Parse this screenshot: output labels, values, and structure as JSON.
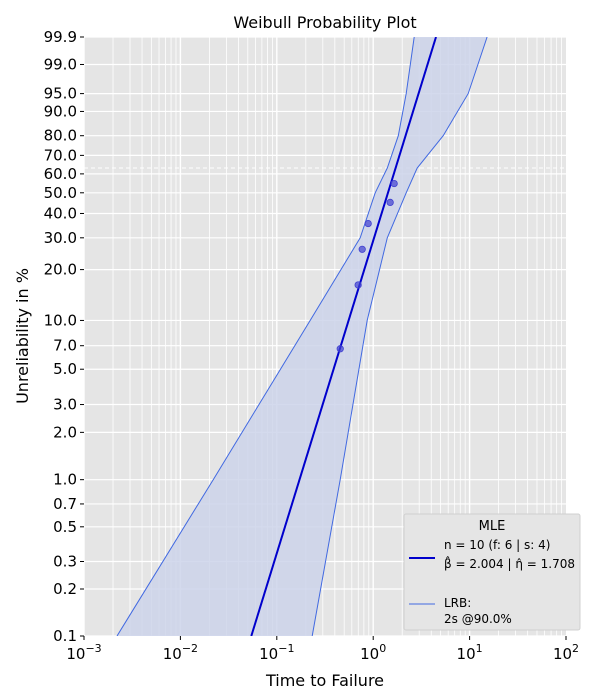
{
  "chart_data": {
    "type": "scatter",
    "title": "Weibull Probability Plot",
    "xlabel": "Time to Failure",
    "ylabel": "Unreliability in %",
    "xscale": "log",
    "yscale": "weibull",
    "xlim": [
      0.001,
      100
    ],
    "ylim": [
      0.1,
      99.9
    ],
    "grid": true,
    "x_ticks": [
      {
        "base": "10",
        "exp": "−3",
        "value": 0.001
      },
      {
        "base": "10",
        "exp": "−2",
        "value": 0.01
      },
      {
        "base": "10",
        "exp": "−1",
        "value": 0.1
      },
      {
        "base": "10",
        "exp": "0",
        "value": 1
      },
      {
        "base": "10",
        "exp": "1",
        "value": 10
      },
      {
        "base": "10",
        "exp": "2",
        "value": 100
      }
    ],
    "y_ticks": [
      "0.1",
      "0.2",
      "0.3",
      "0.5",
      "0.7",
      "1.0",
      "2.0",
      "3.0",
      "5.0",
      "7.0",
      "10.0",
      "20.0",
      "30.0",
      "40.0",
      "50.0",
      "60.0",
      "70.0",
      "80.0",
      "90.0",
      "95.0",
      "99.0",
      "99.9"
    ],
    "characteristic_life_line_percent": 63.2,
    "points": {
      "color": "#4040d0",
      "x": [
        0.455,
        0.698,
        0.769,
        0.887,
        1.5,
        1.65
      ],
      "y": [
        6.7,
        16.3,
        26.0,
        35.6,
        45.2,
        54.8
      ]
    },
    "fit": {
      "color": "#0000cc",
      "beta": 2.004,
      "eta": 1.708
    },
    "bounds": {
      "color": "#4169e1",
      "fill": "#cdd3ea",
      "percent": [
        0.1,
        1,
        10,
        30,
        50,
        63.2,
        80,
        95,
        99.9
      ],
      "lower_time": [
        0.0022,
        0.0219,
        0.222,
        0.733,
        1.05,
        1.4,
        1.82,
        2.2,
        2.66
      ],
      "upper_time": [
        0.233,
        0.455,
        0.866,
        1.4,
        2.2,
        2.86,
        5.32,
        9.67,
        15.2
      ]
    },
    "legend": {
      "title": "MLE",
      "placement": "bottom-right",
      "fit_line1": "n = 10 (f: 6 | s: 4)",
      "fit_line2_beta": "β̂ = 2.004 | η̂ = 1.708",
      "bounds_line1": "LRB:",
      "bounds_line2": "2s @90.0%"
    }
  }
}
